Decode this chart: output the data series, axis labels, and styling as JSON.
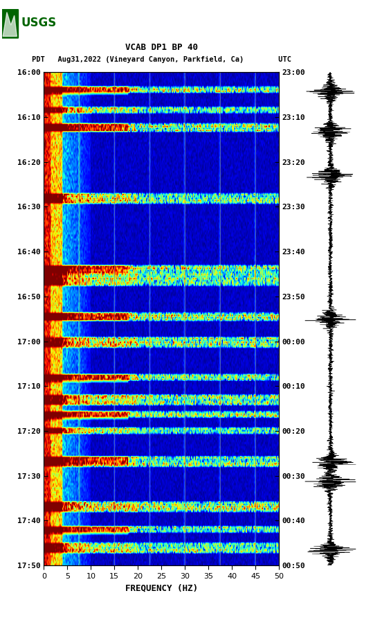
{
  "title_line1": "VCAB DP1 BP 40",
  "title_line2": "PDT   Aug31,2022 (Vineyard Canyon, Parkfield, Ca)        UTC",
  "xlabel": "FREQUENCY (HZ)",
  "ylabel_left": [
    "16:00",
    "16:10",
    "16:20",
    "16:30",
    "16:40",
    "16:50",
    "17:00",
    "17:10",
    "17:20",
    "17:30",
    "17:40",
    "17:50"
  ],
  "ylabel_right": [
    "23:00",
    "23:10",
    "23:20",
    "23:30",
    "23:40",
    "23:50",
    "00:00",
    "00:10",
    "00:20",
    "00:30",
    "00:40",
    "00:50"
  ],
  "xticks": [
    0,
    5,
    10,
    15,
    20,
    25,
    30,
    35,
    40,
    45,
    50
  ],
  "n_time_rows": 240,
  "n_freq_bins": 400,
  "vertical_lines_freq": [
    7.5,
    15.0,
    22.5,
    30.0,
    37.5,
    45.0
  ],
  "event_rows": [
    8,
    18,
    26,
    60,
    95,
    100,
    118,
    130,
    148,
    158,
    166,
    174,
    188,
    210,
    222,
    230
  ],
  "seismo_events": [
    0.04,
    0.12,
    0.21,
    0.5,
    0.79,
    0.83,
    0.97,
    1.08,
    1.22,
    1.31,
    1.38,
    1.45,
    1.56,
    1.75,
    1.85,
    1.91
  ],
  "logo_text": "USGS",
  "logo_color": "#006400"
}
